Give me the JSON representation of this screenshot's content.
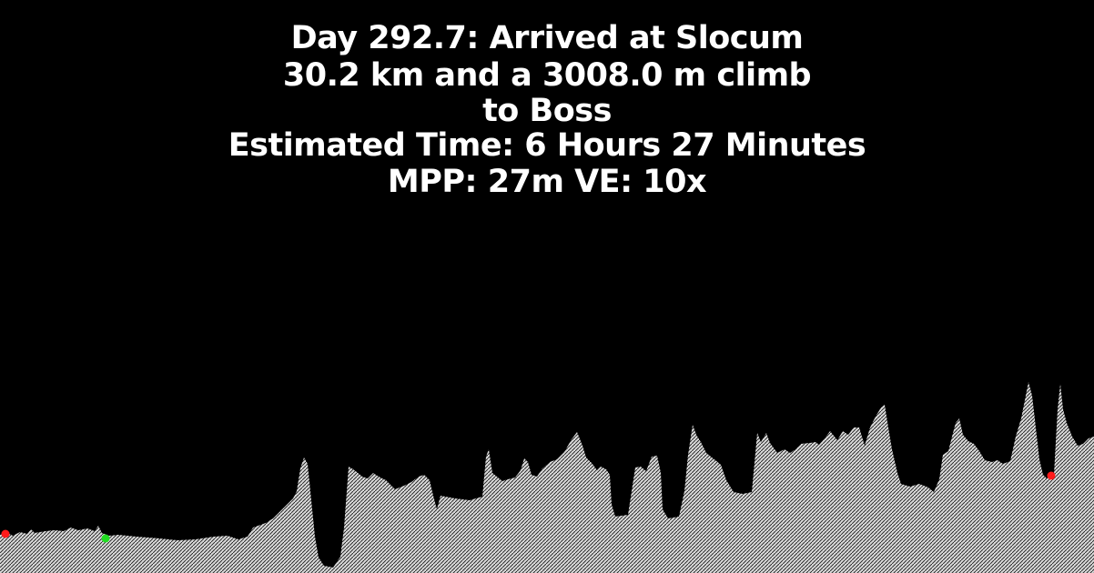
{
  "header": {
    "line1": "Day 292.7: Arrived at Slocum",
    "line2": "30.2 km and a 3008.0 m climb",
    "line3": "to Boss",
    "line4": "Estimated Time: 6 Hours 27 Minutes",
    "line5": "MPP: 27m VE: 10x"
  },
  "colors": {
    "background": "#000000",
    "terrain_fill": "#d8d8d8",
    "terrain_hatch": "#1a1a1a",
    "marker_red": "#ff1a1a",
    "marker_green": "#22dd22"
  }
}
